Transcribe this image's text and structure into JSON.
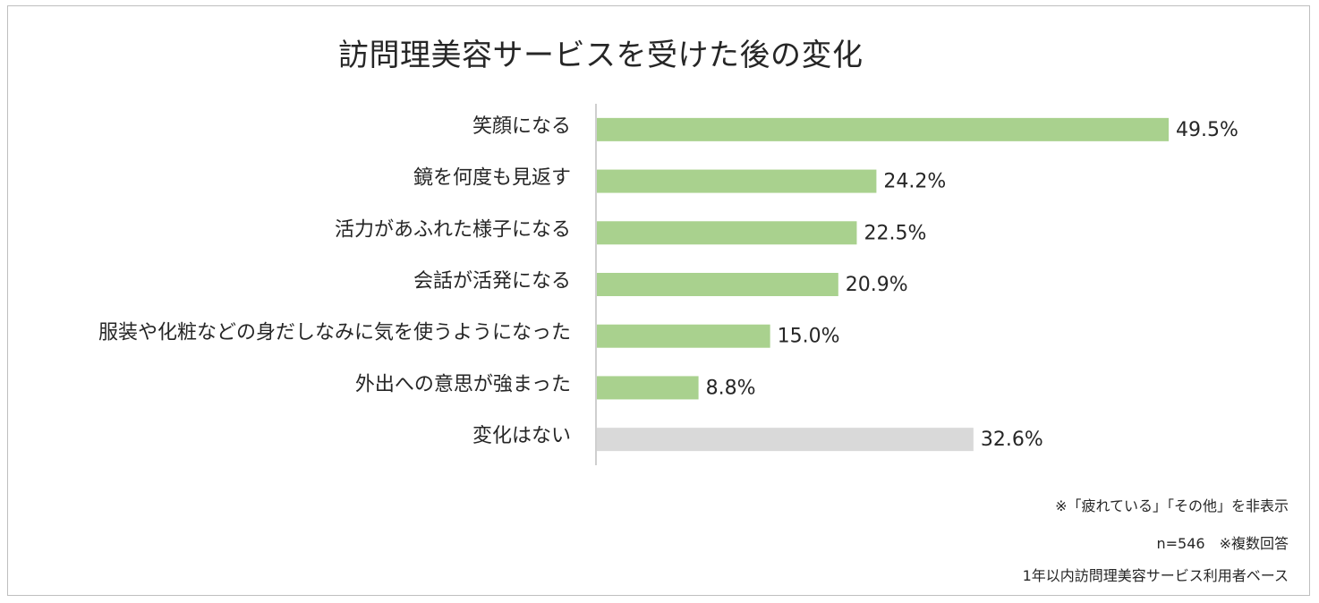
{
  "chart_data": {
    "type": "bar",
    "orientation": "horizontal",
    "title": "訪問理美容サービスを受けた後の変化",
    "categories": [
      "笑顔になる",
      "鏡を何度も見返す",
      "活力があふれた様子になる",
      "会話が活発になる",
      "服装や化粧などの身だしなみに気を使うようになった",
      "外出への意思が強まった",
      "変化はない"
    ],
    "values": [
      49.5,
      24.2,
      22.5,
      20.9,
      15.0,
      8.8,
      32.6
    ],
    "value_labels": [
      "49.5%",
      "24.2%",
      "22.5%",
      "20.9%",
      "15.0%",
      "8.8%",
      "32.6%"
    ],
    "xlim": [
      0,
      52
    ],
    "grid": false,
    "legend": "none",
    "colors": {
      "bar": "#a9d18e",
      "bar_none": "#d9d9d9",
      "axis": "#bfbfbf",
      "text": "#262626"
    }
  },
  "notes": {
    "hidden": "※「疲れている」「その他」を非表示",
    "sample": "n=546　※複数回答",
    "base": "1年以内訪問理美容サービス利用者ベース"
  }
}
